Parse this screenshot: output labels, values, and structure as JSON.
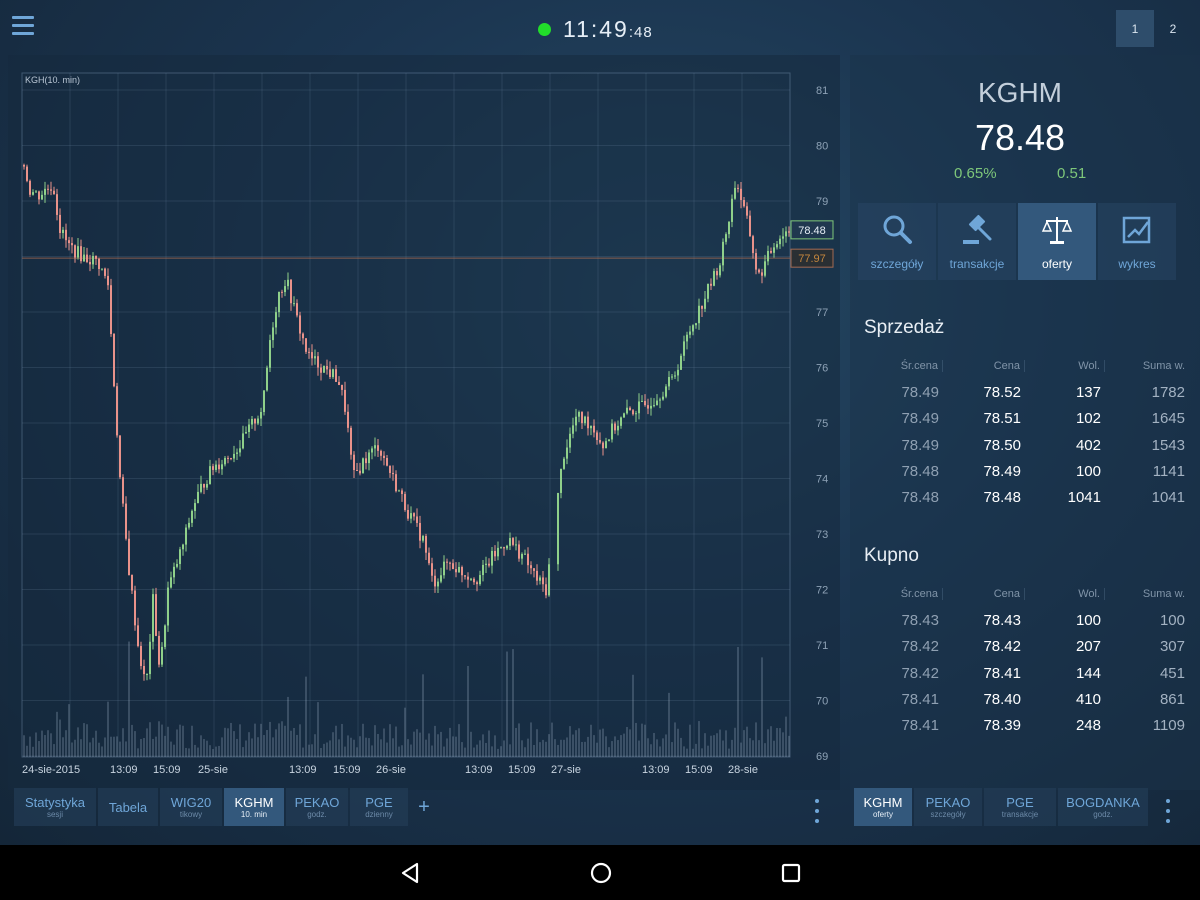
{
  "header": {
    "time_main": "11:49",
    "time_seconds": ":48",
    "status_color": "#22dd2a",
    "layout_buttons": [
      "1",
      "2"
    ]
  },
  "chart": {
    "title": "KGH(10. min)",
    "current_price_label": "78.48",
    "reference_label": "77.97",
    "y_ticks": [
      "81",
      "80",
      "79",
      "78",
      "77",
      "76",
      "75",
      "74",
      "73",
      "72",
      "71",
      "70",
      "69"
    ],
    "x_labels": [
      "24-sie-2015",
      "13:09",
      "15:09",
      "25-sie",
      "13:09",
      "15:09",
      "26-sie",
      "13:09",
      "15:09",
      "27-sie",
      "13:09",
      "15:09",
      "28-sie"
    ],
    "up_color": "#8fd08a",
    "down_color": "#e9928a"
  },
  "chart_tabs": [
    {
      "name": "Statystyka",
      "sub": "sesji"
    },
    {
      "name": "Tabela",
      "sub": ""
    },
    {
      "name": "WIG20",
      "sub": "tikowy"
    },
    {
      "name": "KGHM",
      "sub": "10. min"
    },
    {
      "name": "PEKAO",
      "sub": "godz."
    },
    {
      "name": "PGE",
      "sub": "dzienny"
    }
  ],
  "add_tab_label": "+",
  "quote": {
    "symbol": "KGHM",
    "price": "78.48",
    "change_pct": "0.65%",
    "change_abs": "0.51"
  },
  "actions": [
    {
      "label": "szczegóły",
      "icon": "search-icon"
    },
    {
      "label": "transakcje",
      "icon": "gavel-icon"
    },
    {
      "label": "oferty",
      "icon": "scales-icon"
    },
    {
      "label": "wykres",
      "icon": "chart-icon"
    }
  ],
  "order_book": {
    "sell_title": "Sprzedaż",
    "buy_title": "Kupno",
    "columns": [
      "Śr.cena",
      "Cena",
      "Wol.",
      "Suma w."
    ],
    "sell_rows": [
      [
        "78.49",
        "78.52",
        "137",
        "1782"
      ],
      [
        "78.49",
        "78.51",
        "102",
        "1645"
      ],
      [
        "78.49",
        "78.50",
        "402",
        "1543"
      ],
      [
        "78.48",
        "78.49",
        "100",
        "1141"
      ],
      [
        "78.48",
        "78.48",
        "1041",
        "1041"
      ]
    ],
    "buy_rows": [
      [
        "78.43",
        "78.43",
        "100",
        "100"
      ],
      [
        "78.42",
        "78.42",
        "207",
        "307"
      ],
      [
        "78.42",
        "78.41",
        "144",
        "451"
      ],
      [
        "78.41",
        "78.40",
        "410",
        "861"
      ],
      [
        "78.41",
        "78.39",
        "248",
        "1109"
      ]
    ]
  },
  "right_tabs": [
    {
      "name": "KGHM",
      "sub": "oferty"
    },
    {
      "name": "PEKAO",
      "sub": "szczegóły"
    },
    {
      "name": "PGE",
      "sub": "transakcje"
    },
    {
      "name": "BOGDANKA",
      "sub": "godz."
    }
  ]
}
